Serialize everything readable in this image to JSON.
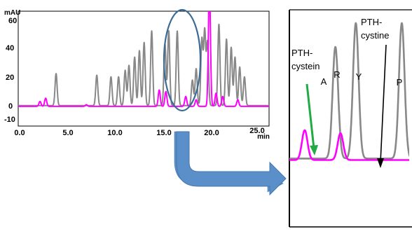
{
  "chart_data": [
    {
      "type": "line",
      "ylabel": "mAU",
      "xlabel": "min",
      "xlim": [
        0,
        26.5
      ],
      "ylim": [
        -10,
        60
      ],
      "x_ticks": [
        "0.0",
        "5.0",
        "10.0",
        "15.0",
        "20.0",
        "25.0"
      ],
      "y_ticks": [
        "60",
        "40",
        "20",
        "0",
        "-10"
      ],
      "series": [
        {
          "color": "#888888",
          "baseline_mau": 2.5,
          "peaks": [
            {
              "x": 4.0,
              "y": 22
            },
            {
              "x": 8.3,
              "y": 21
            },
            {
              "x": 9.8,
              "y": 20
            },
            {
              "x": 10.6,
              "y": 20
            },
            {
              "x": 11.3,
              "y": 24
            },
            {
              "x": 11.7,
              "y": 27
            },
            {
              "x": 12.3,
              "y": 32
            },
            {
              "x": 12.8,
              "y": 36
            },
            {
              "x": 13.3,
              "y": 41
            },
            {
              "x": 14.1,
              "y": 48
            },
            {
              "x": 15.5,
              "y": 40
            },
            {
              "x": 15.9,
              "y": 48
            },
            {
              "x": 16.8,
              "y": 48
            },
            {
              "x": 18.4,
              "y": 18
            },
            {
              "x": 18.8,
              "y": 25
            },
            {
              "x": 19.4,
              "y": 43
            },
            {
              "x": 19.7,
              "y": 48
            },
            {
              "x": 20.0,
              "y": 41
            },
            {
              "x": 21.2,
              "y": 52
            },
            {
              "x": 22.0,
              "y": 43
            },
            {
              "x": 22.5,
              "y": 38
            },
            {
              "x": 22.9,
              "y": 32
            },
            {
              "x": 23.4,
              "y": 26
            },
            {
              "x": 23.9,
              "y": 20
            }
          ]
        },
        {
          "color": "#ff00ff",
          "baseline_mau": 2.0,
          "peaks": [
            {
              "x": 2.3,
              "y": 5
            },
            {
              "x": 2.9,
              "y": 7
            },
            {
              "x": 7.2,
              "y": 3
            },
            {
              "x": 14.9,
              "y": 12
            },
            {
              "x": 15.6,
              "y": 11
            },
            {
              "x": 17.7,
              "y": 8
            },
            {
              "x": 18.8,
              "y": 6
            },
            {
              "x": 20.2,
              "y": 75
            },
            {
              "x": 20.9,
              "y": 10
            },
            {
              "x": 21.6,
              "y": 8
            },
            {
              "x": 23.2,
              "y": 6
            }
          ]
        }
      ]
    },
    {
      "type": "line",
      "xlim": [
        14.6,
        17.0
      ],
      "ylim": [
        -20,
        52
      ],
      "peak_labels": [
        "A",
        "R",
        "Y",
        "P"
      ],
      "annotations": {
        "pth_cystein": [
          "PTH-",
          "cystein"
        ],
        "pth_cystine": [
          "PTH-",
          "cystine"
        ]
      },
      "arrow_colors": {
        "cystein": "#22aa44",
        "cystine": "#000000"
      }
    }
  ],
  "colors": {
    "gray_trace": "#888888",
    "magenta_trace": "#ff00ff",
    "ellipse": "#3a6b96",
    "callout_arrow": "#5b8fc9"
  }
}
